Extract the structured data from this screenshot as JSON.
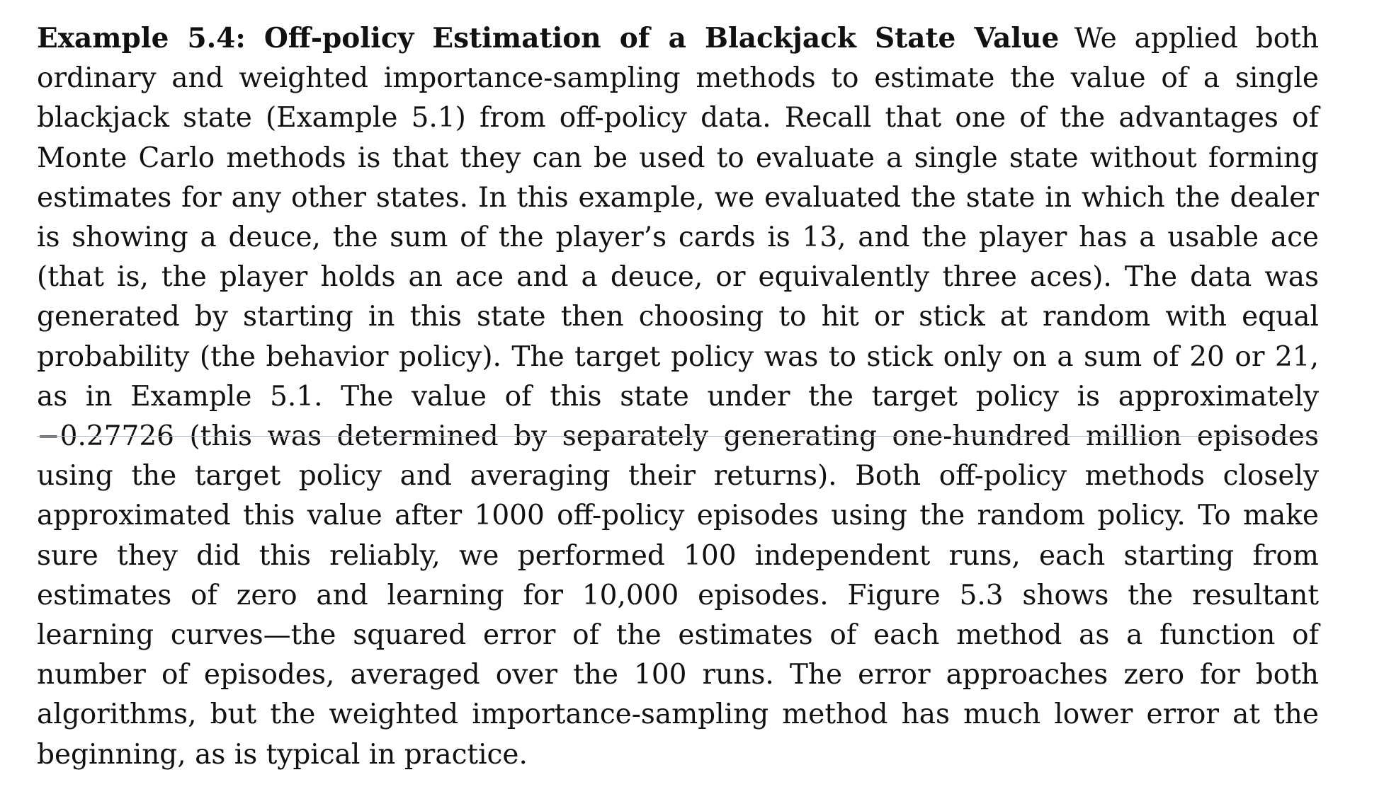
{
  "example": {
    "heading": "Example 5.4: Off-policy Estimation of a Blackjack State Value",
    "body": "We applied both ordinary and weighted importance-sampling methods to estimate the value of a single blackjack state (Example 5.1) from off-policy data. Recall that one of the advantages of Monte Carlo methods is that they can be used to evaluate a single state without forming estimates for any other states. In this example, we evaluated the state in which the dealer is showing a deuce, the sum of the player’s cards is 13, and the player has a usable ace (that is, the player holds an ace and a deuce, or equivalently three aces). The data was generated by starting in this state then choosing to hit or stick at random with equal probability (the behavior policy). The target policy was to stick only on a sum of 20 or 21, as in Example 5.1. The value of this state under the target policy is approximately −0.27726 (this was determined by separately generating one-hundred million episodes using the target policy and averaging their returns). Both off-policy methods closely approximated this value after 1000 off-policy episodes using the random policy. To make sure they did this reliably, we performed 100 independent runs, each starting from estimates of zero and learning for 10,000 episodes. Figure 5.3 shows the resultant learning curves—the squared error of the estimates of each method as a function of number of episodes, averaged over the 100 runs. The error approaches zero for both algorithms, but the weighted importance-sampling method has much lower error at the beginning, as is typical in practice."
  }
}
